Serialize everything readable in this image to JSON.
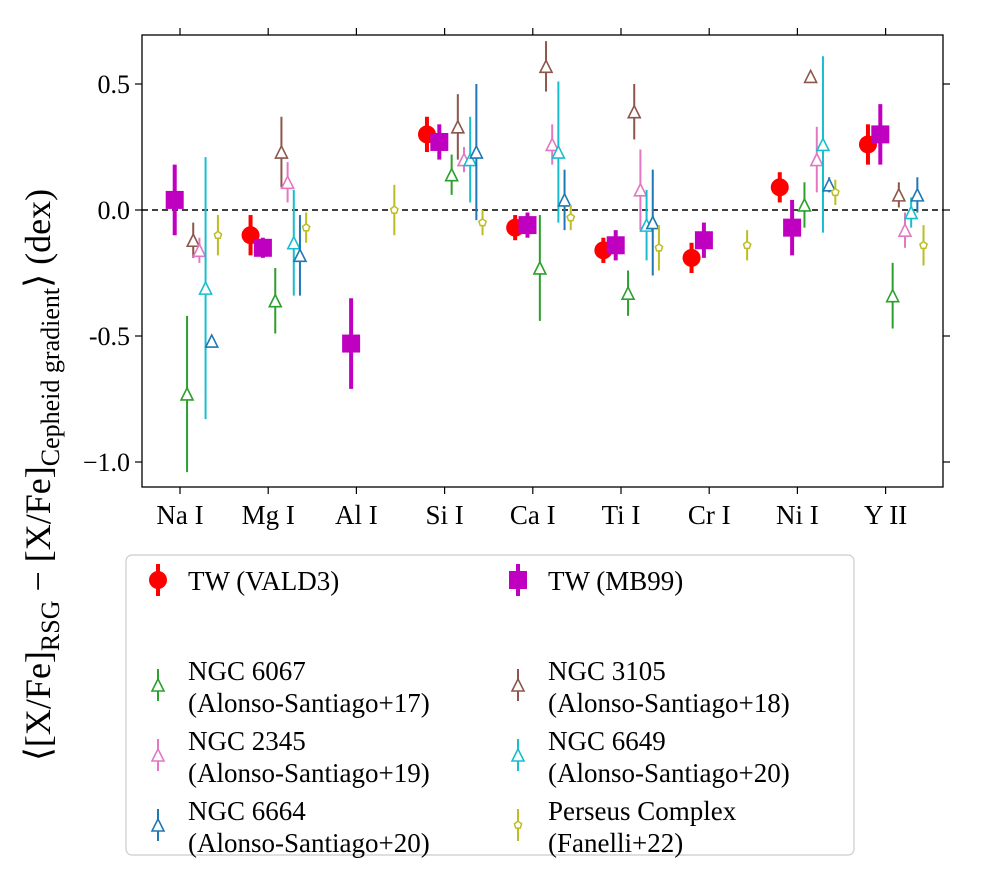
{
  "chart_data": {
    "type": "scatter",
    "title": "",
    "xlabel": "",
    "ylabel": {
      "prefix": "⟨[X/Fe]",
      "sub1": "RSG",
      "middle": " − [X/Fe]",
      "sub2": "Cepheid gradient",
      "suffix": "⟩  (dex)"
    },
    "categories": [
      "Na I",
      "Mg I",
      "Al I",
      "Si I",
      "Ca I",
      "Ti I",
      "Cr I",
      "Ni I",
      "Y II"
    ],
    "ylim": [
      -1.1,
      0.7
    ],
    "yticks": [
      -1.0,
      -0.5,
      0.0,
      0.5
    ],
    "ytick_labels": [
      "−1.0",
      "-0.5",
      "0.0",
      "0.5"
    ],
    "reference_line": 0.0,
    "series": [
      {
        "name": "TW (VALD3)",
        "label_lines": [
          "TW (VALD3)"
        ],
        "color": "#ff0000",
        "marker": "circle",
        "offset": -0.2,
        "points": [
          {
            "category": "Mg I",
            "y": -0.1,
            "err": 0.08
          },
          {
            "category": "Si I",
            "y": 0.3,
            "err": 0.07
          },
          {
            "category": "Ca I",
            "y": -0.07,
            "err": 0.05
          },
          {
            "category": "Ti I",
            "y": -0.16,
            "err": 0.05
          },
          {
            "category": "Cr I",
            "y": -0.19,
            "err": 0.06
          },
          {
            "category": "Ni I",
            "y": 0.09,
            "err": 0.06
          },
          {
            "category": "Y II",
            "y": 0.26,
            "err": 0.08
          }
        ]
      },
      {
        "name": "TW (MB99)",
        "label_lines": [
          "TW (MB99)"
        ],
        "color": "#c000c0",
        "marker": "square",
        "offset": -0.06,
        "points": [
          {
            "category": "Na I",
            "y": 0.04,
            "err": 0.14
          },
          {
            "category": "Mg I",
            "y": -0.15,
            "err": 0.04
          },
          {
            "category": "Al I",
            "y": -0.53,
            "err": 0.18
          },
          {
            "category": "Si I",
            "y": 0.27,
            "err": 0.07
          },
          {
            "category": "Ca I",
            "y": -0.06,
            "err": 0.05
          },
          {
            "category": "Ti I",
            "y": -0.14,
            "err": 0.06
          },
          {
            "category": "Cr I",
            "y": -0.12,
            "err": 0.07
          },
          {
            "category": "Ni I",
            "y": -0.07,
            "err": 0.11
          },
          {
            "category": "Y II",
            "y": 0.3,
            "err": 0.12
          }
        ]
      },
      {
        "name": "NGC 6067 (Alonso-Santiago+17)",
        "label_lines": [
          "NGC 6067",
          "(Alonso-Santiago+17)"
        ],
        "color": "#2ca02c",
        "marker": "triangle",
        "offset": 0.08,
        "points": [
          {
            "category": "Na I",
            "y": -0.73,
            "err": 0.31
          },
          {
            "category": "Mg I",
            "y": -0.36,
            "err": 0.13
          },
          {
            "category": "Si I",
            "y": 0.14,
            "err": 0.08
          },
          {
            "category": "Ca I",
            "y": -0.23,
            "err": 0.21
          },
          {
            "category": "Ti I",
            "y": -0.33,
            "err": 0.09
          },
          {
            "category": "Ni I",
            "y": 0.02,
            "err": 0.09
          },
          {
            "category": "Y II",
            "y": -0.34,
            "err": 0.13
          }
        ]
      },
      {
        "name": "NGC 3105 (Alonso-Santiago+18)",
        "label_lines": [
          "NGC 3105",
          "(Alonso-Santiago+18)"
        ],
        "color": "#8c564b",
        "marker": "triangle",
        "offset": 0.15,
        "points": [
          {
            "category": "Na I",
            "y": -0.12,
            "err": 0.07
          },
          {
            "category": "Mg I",
            "y": 0.23,
            "err": 0.14
          },
          {
            "category": "Si I",
            "y": 0.33,
            "err": 0.13
          },
          {
            "category": "Ca I",
            "y": 0.57,
            "err": 0.1
          },
          {
            "category": "Ti I",
            "y": 0.39,
            "err": 0.11
          },
          {
            "category": "Ni I",
            "y": 0.53,
            "err": 0.02
          },
          {
            "category": "Y II",
            "y": 0.06,
            "err": 0.05
          }
        ]
      },
      {
        "name": "NGC 2345 (Alonso-Santiago+19)",
        "label_lines": [
          "NGC 2345",
          "(Alonso-Santiago+19)"
        ],
        "color": "#e377c2",
        "marker": "triangle",
        "offset": 0.22,
        "points": [
          {
            "category": "Na I",
            "y": -0.16,
            "err": 0.05
          },
          {
            "category": "Mg I",
            "y": 0.11,
            "err": 0.08
          },
          {
            "category": "Si I",
            "y": 0.2,
            "err": 0.05
          },
          {
            "category": "Ca I",
            "y": 0.26,
            "err": 0.08
          },
          {
            "category": "Ti I",
            "y": 0.08,
            "err": 0.16
          },
          {
            "category": "Ni I",
            "y": 0.2,
            "err": 0.13
          },
          {
            "category": "Y II",
            "y": -0.08,
            "err": 0.07
          }
        ]
      },
      {
        "name": "NGC 6649 (Alonso-Santiago+20)",
        "label_lines": [
          "NGC 6649",
          "(Alonso-Santiago+20)"
        ],
        "color": "#17becf",
        "marker": "triangle",
        "offset": 0.29,
        "points": [
          {
            "category": "Na I",
            "y": -0.31,
            "err": 0.52
          },
          {
            "category": "Mg I",
            "y": -0.13,
            "err": 0.21
          },
          {
            "category": "Si I",
            "y": 0.2,
            "err": 0.17
          },
          {
            "category": "Ca I",
            "y": 0.23,
            "err": 0.28
          },
          {
            "category": "Ti I",
            "y": -0.06,
            "err": 0.14
          },
          {
            "category": "Ni I",
            "y": 0.26,
            "err": 0.35
          },
          {
            "category": "Y II",
            "y": -0.01,
            "err": 0.06
          }
        ]
      },
      {
        "name": "NGC 6664 (Alonso-Santiago+20)",
        "label_lines": [
          "NGC 6664",
          "(Alonso-Santiago+20)"
        ],
        "color": "#1f77b4",
        "marker": "triangle",
        "offset": 0.36,
        "points": [
          {
            "category": "Na I",
            "y": -0.52,
            "err": 0.01
          },
          {
            "category": "Mg I",
            "y": -0.18,
            "err": 0.16
          },
          {
            "category": "Si I",
            "y": 0.23,
            "err": 0.27
          },
          {
            "category": "Ca I",
            "y": 0.04,
            "err": 0.12
          },
          {
            "category": "Ti I",
            "y": -0.05,
            "err": 0.21
          },
          {
            "category": "Ni I",
            "y": 0.1,
            "err": 0.03
          },
          {
            "category": "Y II",
            "y": 0.06,
            "err": 0.07
          }
        ]
      },
      {
        "name": "Perseus Complex (Fanelli+22)",
        "label_lines": [
          "Perseus Complex",
          "(Fanelli+22)"
        ],
        "color": "#bcbd22",
        "marker": "pentagon",
        "offset": 0.43,
        "points": [
          {
            "category": "Na I",
            "y": -0.1,
            "err": 0.08
          },
          {
            "category": "Mg I",
            "y": -0.07,
            "err": 0.06
          },
          {
            "category": "Al I",
            "y": 0.0,
            "err": 0.1
          },
          {
            "category": "Si I",
            "y": -0.05,
            "err": 0.05
          },
          {
            "category": "Ca I",
            "y": -0.03,
            "err": 0.05
          },
          {
            "category": "Ti I",
            "y": -0.15,
            "err": 0.09
          },
          {
            "category": "Cr I",
            "y": -0.14,
            "err": 0.06
          },
          {
            "category": "Ni I",
            "y": 0.07,
            "err": 0.05
          },
          {
            "category": "Y II",
            "y": -0.14,
            "err": 0.08
          }
        ]
      }
    ],
    "legend": {
      "location": "below plot",
      "columns": 2
    }
  }
}
